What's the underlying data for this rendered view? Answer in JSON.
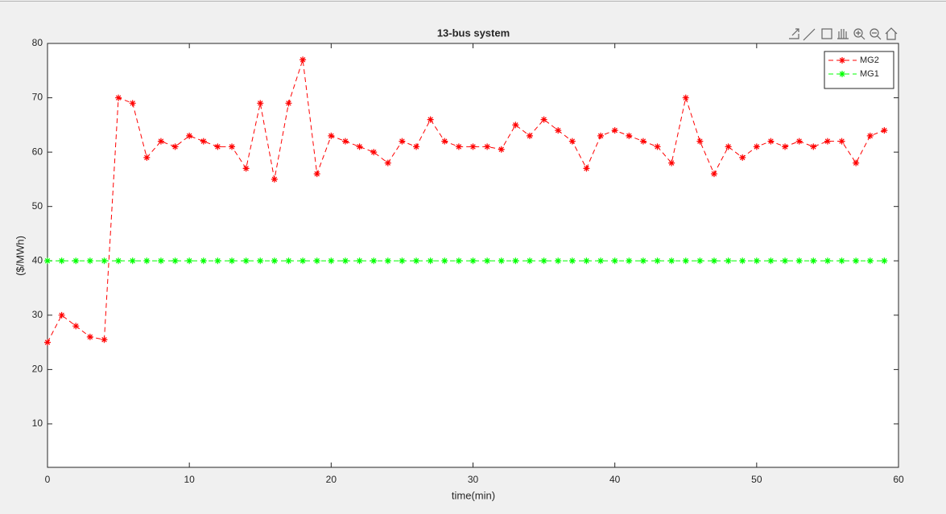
{
  "chart_data": {
    "type": "line",
    "title": "13-bus system",
    "x_label": "time(min)",
    "y_label": "($/MWh)",
    "x": [
      0,
      1,
      2,
      3,
      4,
      5,
      6,
      7,
      8,
      9,
      10,
      11,
      12,
      13,
      14,
      15,
      16,
      17,
      18,
      19,
      20,
      21,
      22,
      23,
      24,
      25,
      26,
      27,
      28,
      29,
      30,
      31,
      32,
      33,
      34,
      35,
      36,
      37,
      38,
      39,
      40,
      41,
      42,
      43,
      44,
      45,
      46,
      47,
      48,
      49,
      50,
      51,
      52,
      53,
      54,
      55,
      56,
      57,
      58,
      59
    ],
    "series": [
      {
        "name": "MG2",
        "color": "#ff0000",
        "values": [
          25,
          30,
          28,
          26,
          25.5,
          70,
          69,
          59,
          62,
          61,
          63,
          62,
          61,
          61,
          57,
          69,
          55,
          69,
          77,
          56,
          63,
          62,
          61,
          60,
          58,
          62,
          61,
          66,
          62,
          61,
          61,
          61,
          60.5,
          65,
          63,
          66,
          64,
          62,
          57,
          63,
          64,
          63,
          62,
          61,
          58,
          70,
          62,
          56,
          61,
          59,
          61,
          62,
          61,
          62,
          61,
          62,
          62,
          58,
          63,
          64
        ]
      },
      {
        "name": "MG1",
        "color": "#00ff00",
        "values": [
          40,
          40,
          40,
          40,
          40,
          40,
          40,
          40,
          40,
          40,
          40,
          40,
          40,
          40,
          40,
          40,
          40,
          40,
          40,
          40,
          40,
          40,
          40,
          40,
          40,
          40,
          40,
          40,
          40,
          40,
          40,
          40,
          40,
          40,
          40,
          40,
          40,
          40,
          40,
          40,
          40,
          40,
          40,
          40,
          40,
          40,
          40,
          40,
          40,
          40,
          40,
          40,
          40,
          40,
          40,
          40,
          40,
          40,
          40,
          40
        ]
      }
    ],
    "xlim": [
      0,
      60
    ],
    "xticks": [
      0,
      10,
      20,
      30,
      40,
      50,
      60
    ],
    "ylim": [
      2,
      80
    ],
    "yticks": [
      10,
      20,
      30,
      40,
      50,
      60,
      70,
      80
    ],
    "legend": "upper right",
    "line_style": "dashed",
    "marker": "asterisk"
  }
}
